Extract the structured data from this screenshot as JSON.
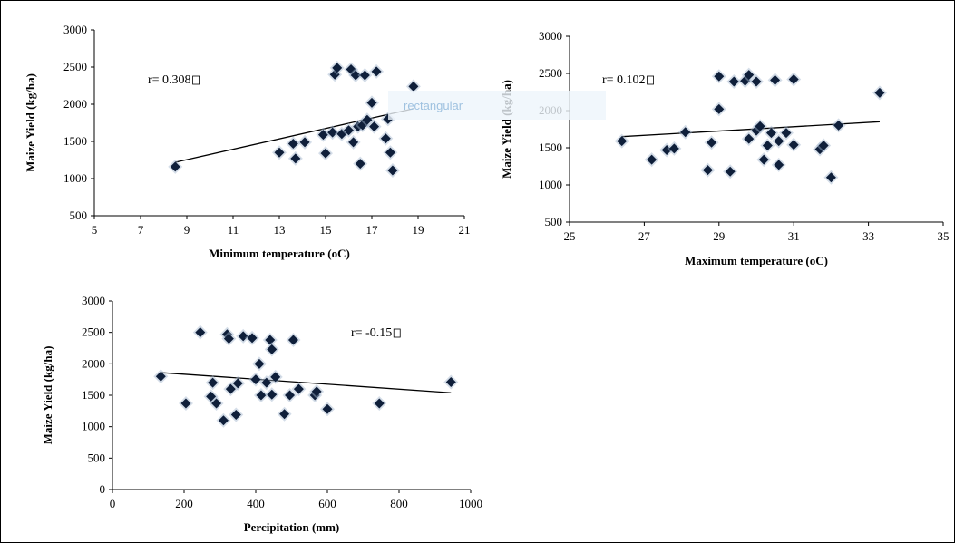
{
  "watermark": "rectangular",
  "chart_data": [
    {
      "type": "scatter",
      "title": "",
      "xlabel": "Minimum temperature (oC)",
      "ylabel": "Maize Yield (kg/ha)",
      "annotation": "r= 0.308 ",
      "xlim": [
        5,
        21
      ],
      "ylim": [
        500,
        3000
      ],
      "xticks": [
        "5",
        "7",
        "9",
        "11",
        "13",
        "15",
        "17",
        "19",
        "21"
      ],
      "yticks": [
        "500",
        "1000",
        "1500",
        "2000",
        "2500",
        "3000"
      ],
      "grid": false,
      "trendline": [
        [
          8.5,
          1220
        ],
        [
          18.8,
          1940
        ]
      ],
      "points": [
        [
          8.5,
          1160
        ],
        [
          13.0,
          1350
        ],
        [
          13.6,
          1470
        ],
        [
          13.7,
          1270
        ],
        [
          14.1,
          1490
        ],
        [
          14.9,
          1590
        ],
        [
          15.0,
          1340
        ],
        [
          15.3,
          1620
        ],
        [
          15.4,
          2400
        ],
        [
          15.5,
          2490
        ],
        [
          15.7,
          1600
        ],
        [
          16.0,
          1650
        ],
        [
          16.1,
          2470
        ],
        [
          16.2,
          1490
        ],
        [
          16.3,
          2390
        ],
        [
          16.4,
          1700
        ],
        [
          16.5,
          1200
        ],
        [
          16.6,
          1720
        ],
        [
          16.7,
          2390
        ],
        [
          16.8,
          1790
        ],
        [
          17.0,
          2020
        ],
        [
          17.1,
          1700
        ],
        [
          17.2,
          2440
        ],
        [
          17.6,
          1540
        ],
        [
          17.7,
          1800
        ],
        [
          17.8,
          1350
        ],
        [
          17.9,
          1110
        ],
        [
          18.8,
          2240
        ]
      ]
    },
    {
      "type": "scatter",
      "title": "",
      "xlabel": "Maximum temperature (oC)",
      "ylabel": "Maize Yield (kg/ha)",
      "annotation": "r= 0.102",
      "xlim": [
        25,
        35
      ],
      "ylim": [
        500,
        3000
      ],
      "xticks": [
        "25",
        "27",
        "29",
        "31",
        "33",
        "35"
      ],
      "yticks": [
        "500",
        "1000",
        "1500",
        "2000",
        "2500",
        "3000"
      ],
      "grid": false,
      "trendline": [
        [
          26.4,
          1650
        ],
        [
          33.3,
          1850
        ]
      ],
      "points": [
        [
          26.4,
          1590
        ],
        [
          27.2,
          1340
        ],
        [
          27.6,
          1470
        ],
        [
          27.8,
          1490
        ],
        [
          28.1,
          1710
        ],
        [
          28.7,
          1200
        ],
        [
          28.8,
          1570
        ],
        [
          29.0,
          2460
        ],
        [
          29.0,
          2020
        ],
        [
          29.3,
          1180
        ],
        [
          29.4,
          2390
        ],
        [
          29.7,
          2400
        ],
        [
          29.8,
          2480
        ],
        [
          29.8,
          1620
        ],
        [
          30.0,
          1730
        ],
        [
          30.0,
          2390
        ],
        [
          30.1,
          1790
        ],
        [
          30.2,
          1340
        ],
        [
          30.3,
          1530
        ],
        [
          30.4,
          1700
        ],
        [
          30.5,
          2410
        ],
        [
          30.6,
          1590
        ],
        [
          30.6,
          1270
        ],
        [
          30.8,
          1700
        ],
        [
          31.0,
          1540
        ],
        [
          31.0,
          2420
        ],
        [
          31.7,
          1480
        ],
        [
          31.8,
          1530
        ],
        [
          32.0,
          1100
        ],
        [
          32.2,
          1800
        ],
        [
          33.3,
          2240
        ]
      ]
    },
    {
      "type": "scatter",
      "title": "",
      "xlabel": "Percipitation (mm)",
      "ylabel": "Maize Yield (kg/ha)",
      "annotation": "r= -0.15",
      "xlim": [
        0,
        1000
      ],
      "ylim": [
        0,
        3000
      ],
      "xticks": [
        "0",
        "200",
        "400",
        "600",
        "800",
        "1000"
      ],
      "yticks": [
        "0",
        "500",
        "1000",
        "1500",
        "2000",
        "2500",
        "3000"
      ],
      "grid": false,
      "trendline": [
        [
          135,
          1860
        ],
        [
          945,
          1540
        ]
      ],
      "points": [
        [
          135,
          1800
        ],
        [
          205,
          1370
        ],
        [
          245,
          2500
        ],
        [
          275,
          1480
        ],
        [
          280,
          1700
        ],
        [
          290,
          1370
        ],
        [
          310,
          1100
        ],
        [
          320,
          2470
        ],
        [
          325,
          2400
        ],
        [
          330,
          1600
        ],
        [
          345,
          1190
        ],
        [
          350,
          1690
        ],
        [
          365,
          2440
        ],
        [
          390,
          2410
        ],
        [
          400,
          1750
        ],
        [
          410,
          2000
        ],
        [
          415,
          1500
        ],
        [
          430,
          1700
        ],
        [
          440,
          2380
        ],
        [
          445,
          1510
        ],
        [
          445,
          2230
        ],
        [
          455,
          1790
        ],
        [
          480,
          1200
        ],
        [
          495,
          1500
        ],
        [
          505,
          2380
        ],
        [
          520,
          1600
        ],
        [
          565,
          1500
        ],
        [
          570,
          1560
        ],
        [
          600,
          1280
        ],
        [
          745,
          1370
        ],
        [
          945,
          1710
        ]
      ]
    }
  ]
}
